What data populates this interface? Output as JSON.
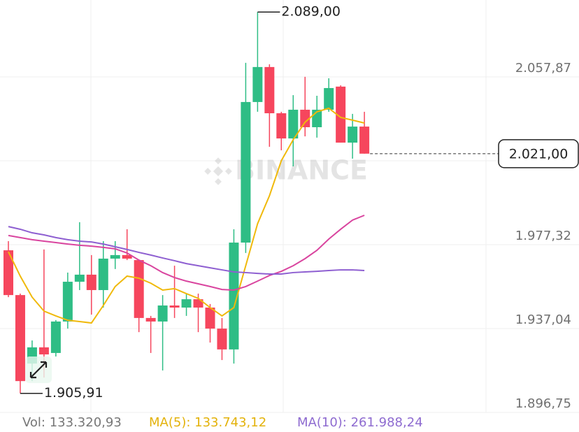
{
  "chart_data": {
    "type": "candlestick",
    "categories": [
      null,
      null,
      null,
      null,
      null,
      null,
      null,
      null,
      null,
      null,
      null,
      null,
      null,
      null,
      null,
      null,
      null,
      null,
      null,
      null,
      null,
      null,
      null,
      null,
      null,
      null,
      null,
      null,
      null,
      null,
      null
    ],
    "open": [
      1974.6,
      1953.1,
      1920.2,
      1928.0,
      1925.3,
      1940.4,
      1959.5,
      1962.9,
      1955.5,
      1970.6,
      1972.3,
      1969.9,
      1942.1,
      1940.4,
      1948.1,
      1947.1,
      1951.1,
      1947.1,
      1937.0,
      1927.0,
      1978.3,
      2045.8,
      2062.6,
      2040.4,
      2028.3,
      2042.1,
      2033.7,
      2042.1,
      2053.2,
      2026.3,
      2034.0
    ],
    "high": [
      1979.0,
      1953.8,
      1931.3,
      1975.0,
      1941.1,
      1963.9,
      1988.1,
      1972.3,
      1979.0,
      1979.0,
      1984.7,
      1969.9,
      1943.1,
      1953.1,
      1967.2,
      1953.8,
      1953.8,
      1948.8,
      1942.1,
      1984.7,
      2064.6,
      2089.0,
      2063.9,
      2041.1,
      2049.1,
      2057.9,
      2048.8,
      2057.2,
      2053.8,
      2040.1,
      2041.1
    ],
    "low": [
      1952.1,
      1905.91,
      1911.8,
      1913.5,
      1923.6,
      1937.0,
      1955.5,
      1943.7,
      1947.1,
      1965.6,
      1969.9,
      1935.3,
      1925.3,
      1916.9,
      1942.1,
      1943.1,
      1935.3,
      1930.3,
      1921.9,
      1920.2,
      1973.3,
      2041.1,
      2024.3,
      2022.6,
      2014.9,
      2029.3,
      2028.7,
      2041.1,
      2026.3,
      2018.6,
      2021.0
    ],
    "close": [
      1953.1,
      1911.8,
      1928.0,
      1924.6,
      1940.4,
      1959.5,
      1962.9,
      1955.5,
      1970.6,
      1972.3,
      1970.6,
      1942.1,
      1940.4,
      1948.1,
      1947.1,
      1951.1,
      1947.1,
      1937.0,
      1927.0,
      1978.3,
      2045.8,
      2062.6,
      2040.4,
      2028.3,
      2042.1,
      2033.7,
      2042.1,
      2052.5,
      2026.3,
      2034.0,
      2021.0
    ],
    "up_color": "#2ebd85",
    "down_color": "#f6465d",
    "lines": [
      {
        "color": "#f0b90b",
        "values": [
          1973.9,
          1962.2,
          1952.1,
          1945.4,
          1943.1,
          1941.0,
          1940.4,
          1939.7,
          1948.1,
          1957.2,
          1962.2,
          1961.2,
          1958.8,
          1955.5,
          1956.2,
          1953.8,
          1951.5,
          1947.1,
          1943.1,
          1947.1,
          1967.2,
          1987.4,
          2000.8,
          2017.6,
          2027.7,
          2036.1,
          2041.1,
          2042.8,
          2038.4,
          2037.1,
          2035.7
        ]
      },
      {
        "color": "#d9459f",
        "values": [
          1981.7,
          1980.7,
          1979.7,
          1979.0,
          1978.3,
          1977.6,
          1977.0,
          1976.6,
          1976.0,
          1975.3,
          1973.3,
          1969.9,
          1967.2,
          1963.9,
          1961.5,
          1959.8,
          1958.5,
          1957.2,
          1955.8,
          1955.5,
          1957.2,
          1959.8,
          1962.5,
          1964.5,
          1967.2,
          1970.6,
          1974.6,
          1980.0,
          1984.7,
          1989.1,
          1991.4
        ]
      },
      {
        "color": "#8e5fd1",
        "values": [
          1986.0,
          1984.7,
          1983.0,
          1982.0,
          1980.7,
          1979.7,
          1979.0,
          1978.6,
          1977.6,
          1976.3,
          1975.0,
          1973.6,
          1972.3,
          1970.9,
          1969.6,
          1968.2,
          1967.2,
          1966.2,
          1965.2,
          1964.2,
          1963.9,
          1963.5,
          1963.2,
          1963.2,
          1963.9,
          1964.2,
          1964.5,
          1964.9,
          1965.2,
          1965.2,
          1964.9
        ]
      }
    ],
    "ylim": [
      1896.75,
      2094.78
    ],
    "yticks": [
      {
        "value": 2057.87,
        "label": "2.057,87"
      },
      {
        "value": 1977.32,
        "label": "1.977,32"
      },
      {
        "value": 1937.04,
        "label": "1.937,04"
      },
      {
        "value": 1896.75,
        "label": "1.896,75"
      }
    ],
    "grid": true,
    "high_mark": {
      "value": 2089.0,
      "label": "2.089,00"
    },
    "low_mark": {
      "value": 1905.91,
      "label": "1.905,91"
    },
    "last_price": {
      "value": 2021.0,
      "label": "2.021,00"
    },
    "watermark": "BINANCE"
  },
  "footer": {
    "vol": "Vol: 133.320,93",
    "ma5": "MA(5): 133.743,12",
    "ma10": "MA(10): 261.988,24"
  }
}
